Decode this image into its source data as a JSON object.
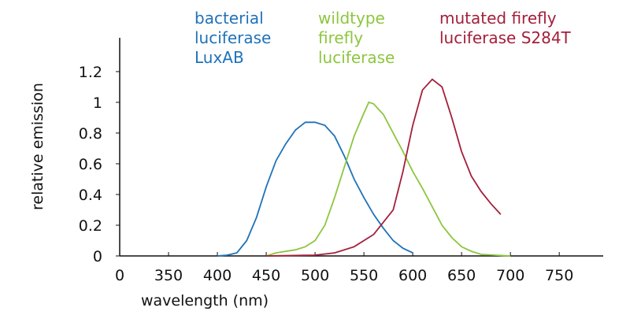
{
  "chart_data": {
    "type": "line",
    "x_label": "wavelength (nm)",
    "y_label": "relative emission",
    "xlim": [
      300,
      795
    ],
    "ylim": [
      0,
      1.42
    ],
    "xticks": [
      {
        "value": 300,
        "label": "0"
      },
      350,
      400,
      450,
      500,
      550,
      600,
      650,
      700,
      750
    ],
    "yticks": [
      0,
      0.2,
      0.4,
      0.6,
      0.8,
      1,
      1.2
    ],
    "series": [
      {
        "name": "bacterial luciferase LuxAB",
        "color": "#1f72b8",
        "x": [
          400,
          410,
          420,
          430,
          440,
          450,
          460,
          470,
          480,
          490,
          500,
          510,
          520,
          530,
          540,
          550,
          560,
          570,
          580,
          590,
          600
        ],
        "values": [
          0,
          0.005,
          0.02,
          0.1,
          0.25,
          0.45,
          0.62,
          0.73,
          0.82,
          0.87,
          0.87,
          0.85,
          0.78,
          0.65,
          0.5,
          0.38,
          0.27,
          0.18,
          0.1,
          0.05,
          0.02
        ]
      },
      {
        "name": "wildtype firefly luciferase",
        "color": "#8dc63f",
        "x": [
          450,
          460,
          480,
          490,
          500,
          510,
          520,
          530,
          540,
          550,
          555,
          560,
          570,
          580,
          590,
          600,
          610,
          620,
          630,
          640,
          650,
          660,
          670,
          700
        ],
        "values": [
          0,
          0.02,
          0.04,
          0.06,
          0.1,
          0.2,
          0.38,
          0.58,
          0.78,
          0.93,
          1.0,
          0.99,
          0.92,
          0.8,
          0.68,
          0.55,
          0.44,
          0.32,
          0.2,
          0.12,
          0.06,
          0.03,
          0.01,
          0
        ]
      },
      {
        "name": "mutated firefly luciferase S284T",
        "color": "#a31f3a",
        "x": [
          450,
          500,
          520,
          540,
          560,
          580,
          590,
          600,
          610,
          620,
          630,
          640,
          650,
          660,
          670,
          680,
          690
        ],
        "values": [
          0,
          0.005,
          0.02,
          0.06,
          0.14,
          0.3,
          0.55,
          0.85,
          1.08,
          1.15,
          1.1,
          0.9,
          0.68,
          0.52,
          0.42,
          0.34,
          0.27
        ]
      }
    ]
  }
}
